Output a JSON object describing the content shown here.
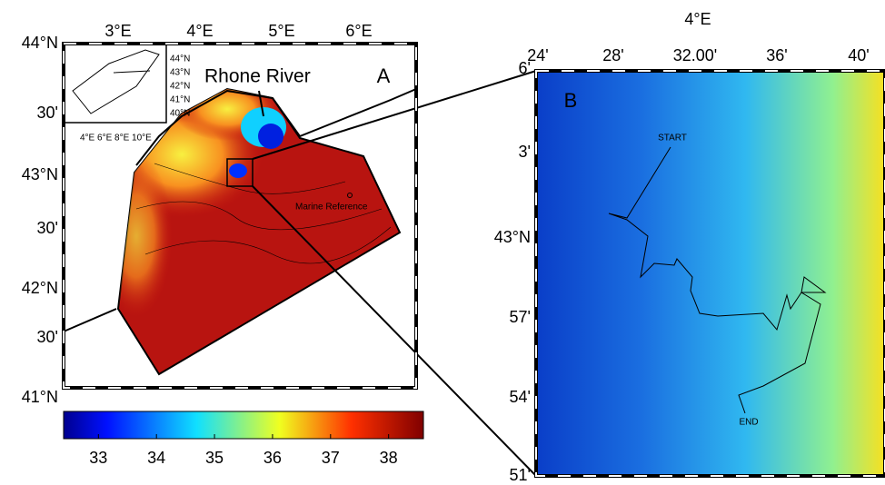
{
  "panel_a": {
    "label": "A",
    "top_labels": [
      "3°E",
      "4°E",
      "5°E",
      "6°E"
    ],
    "left_labels": [
      "44°N",
      "30'",
      "43°N",
      "30'",
      "42°N",
      "30'",
      "41°N"
    ],
    "inset_lat_labels": [
      "44°N",
      "43°N",
      "42°N",
      "41°N",
      "40°N"
    ],
    "inset_lon_label": "4°E 6°E 8°E 10°E",
    "river_label": "Rhone River",
    "station_label": "Marine Reference"
  },
  "colorbar": {
    "range": [
      32.4,
      38.6
    ],
    "ticks": [
      33,
      34,
      35,
      36,
      37,
      38
    ]
  },
  "panel_b": {
    "label": "B",
    "top_title": "4°E",
    "top_labels": [
      "24'",
      "28'",
      "32.00'",
      "36'",
      "40'"
    ],
    "left_labels": [
      "6'",
      "3'",
      "43°N",
      "57'",
      "54'",
      "51'"
    ],
    "start_label": "START",
    "end_label": "END"
  }
}
